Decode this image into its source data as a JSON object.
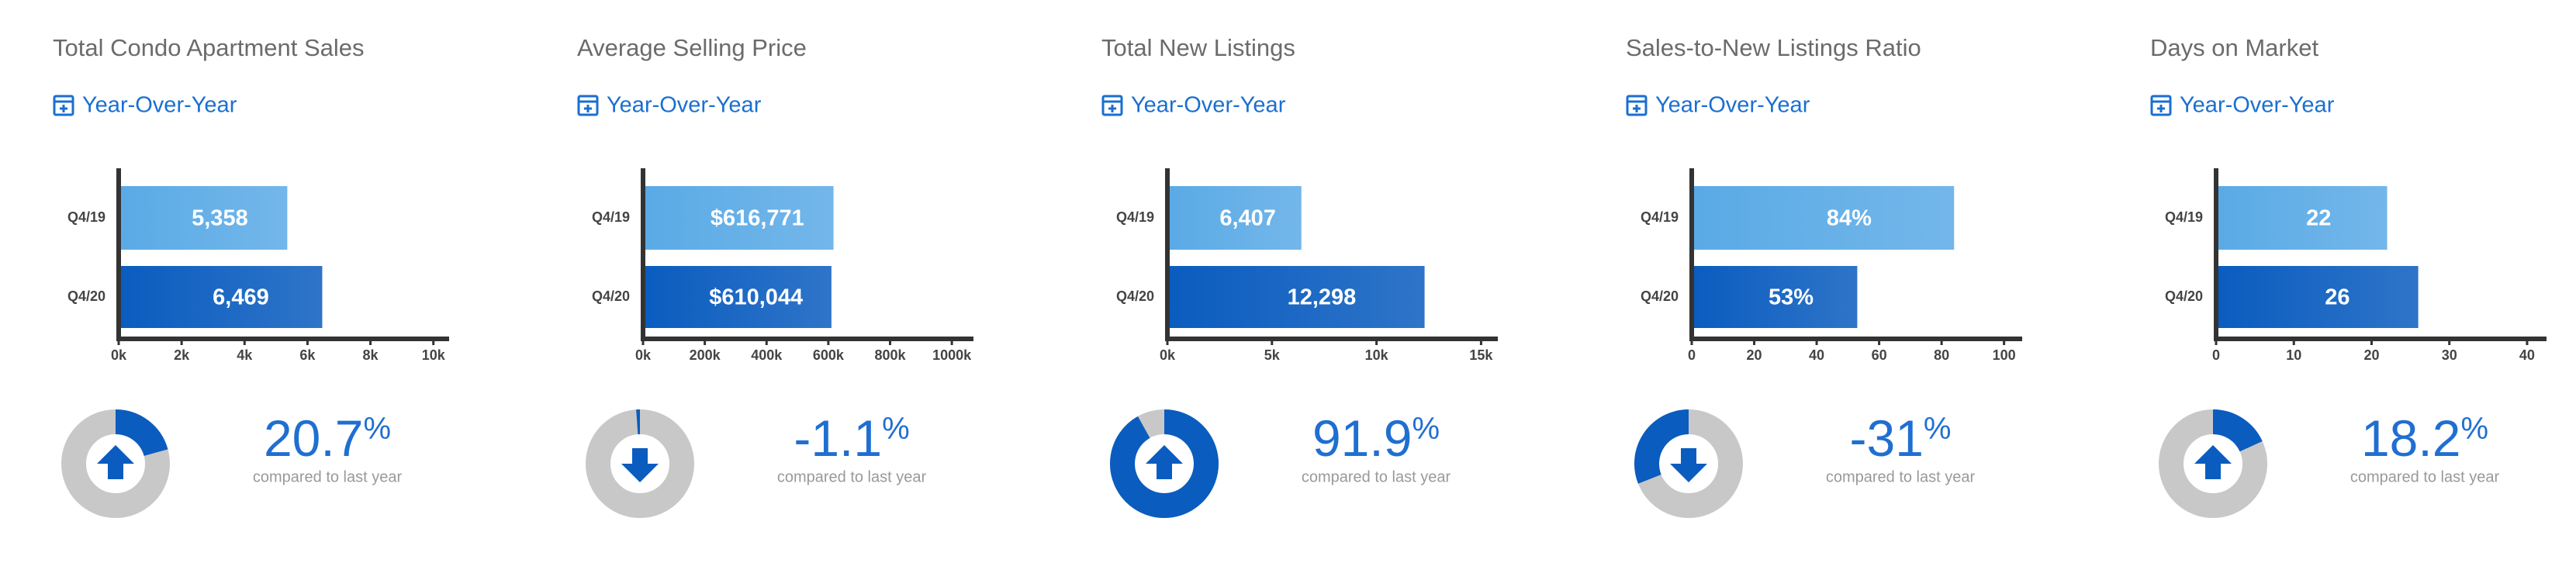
{
  "chart_data": [
    {
      "type": "hbar",
      "title": "Total Condo Apartment Sales",
      "subtitle": "Year-Over-Year",
      "categories": [
        "Q4/19",
        "Q4/20"
      ],
      "values": [
        5358,
        6469
      ],
      "value_labels": [
        "5,358",
        "6,469"
      ],
      "colors": [
        "#5aaae6",
        "#0a5cbf"
      ],
      "xlim": [
        0,
        10500
      ],
      "xticks": [
        {
          "value": 0,
          "label": "0k"
        },
        {
          "value": 2000,
          "label": "2k"
        },
        {
          "value": 4000,
          "label": "4k"
        },
        {
          "value": 6000,
          "label": "6k"
        },
        {
          "value": 8000,
          "label": "8k"
        },
        {
          "value": 10000,
          "label": "10k"
        }
      ],
      "change_value": 20.7,
      "change_unit": "%",
      "change_note": "compared to last year"
    },
    {
      "type": "hbar",
      "title": "Average Selling Price",
      "subtitle": "Year-Over-Year",
      "categories": [
        "Q4/19",
        "Q4/20"
      ],
      "values": [
        616771,
        610044
      ],
      "value_labels": [
        "$616,771",
        "$610,044"
      ],
      "colors": [
        "#5aaae6",
        "#0a5cbf"
      ],
      "xlim": [
        0,
        1070000
      ],
      "xticks": [
        {
          "value": 0,
          "label": "0k"
        },
        {
          "value": 200000,
          "label": "200k"
        },
        {
          "value": 400000,
          "label": "400k"
        },
        {
          "value": 600000,
          "label": "600k"
        },
        {
          "value": 800000,
          "label": "800k"
        },
        {
          "value": 1000000,
          "label": "1000k"
        }
      ],
      "change_value": -1.1,
      "change_unit": "%",
      "change_note": "compared to last year"
    },
    {
      "type": "hbar",
      "title": "Total New Listings",
      "subtitle": "Year-Over-Year",
      "categories": [
        "Q4/19",
        "Q4/20"
      ],
      "values": [
        6407,
        12298
      ],
      "value_labels": [
        "6,407",
        "12,298"
      ],
      "colors": [
        "#5aaae6",
        "#0a5cbf"
      ],
      "xlim": [
        0,
        15800
      ],
      "xticks": [
        {
          "value": 0,
          "label": "0k"
        },
        {
          "value": 5000,
          "label": "5k"
        },
        {
          "value": 10000,
          "label": "10k"
        },
        {
          "value": 15000,
          "label": "15k"
        }
      ],
      "change_value": 91.9,
      "change_unit": "%",
      "change_note": "compared to last year"
    },
    {
      "type": "hbar",
      "title": "Sales-to-New Listings Ratio",
      "subtitle": "Year-Over-Year",
      "categories": [
        "Q4/19",
        "Q4/20"
      ],
      "values": [
        84,
        53
      ],
      "value_labels": [
        "84%",
        "53%"
      ],
      "colors": [
        "#5aaae6",
        "#0a5cbf"
      ],
      "xlim": [
        0,
        105.8
      ],
      "xticks": [
        0,
        20,
        40,
        60,
        80,
        100
      ],
      "change_value": -31,
      "change_unit": "%",
      "change_note": "compared to last year"
    },
    {
      "type": "hbar",
      "title": "Days on Market",
      "subtitle": "Year-Over-Year",
      "categories": [
        "Q4/19",
        "Q4/20"
      ],
      "values": [
        22,
        26
      ],
      "colors": [
        "#5aaae6",
        "#0a5cbf"
      ],
      "xlim": [
        0,
        42.5
      ],
      "xticks": [
        0,
        10,
        20,
        30,
        40
      ],
      "change_value": 18.2,
      "change_unit": "%",
      "change_note": "compared to last year"
    }
  ]
}
